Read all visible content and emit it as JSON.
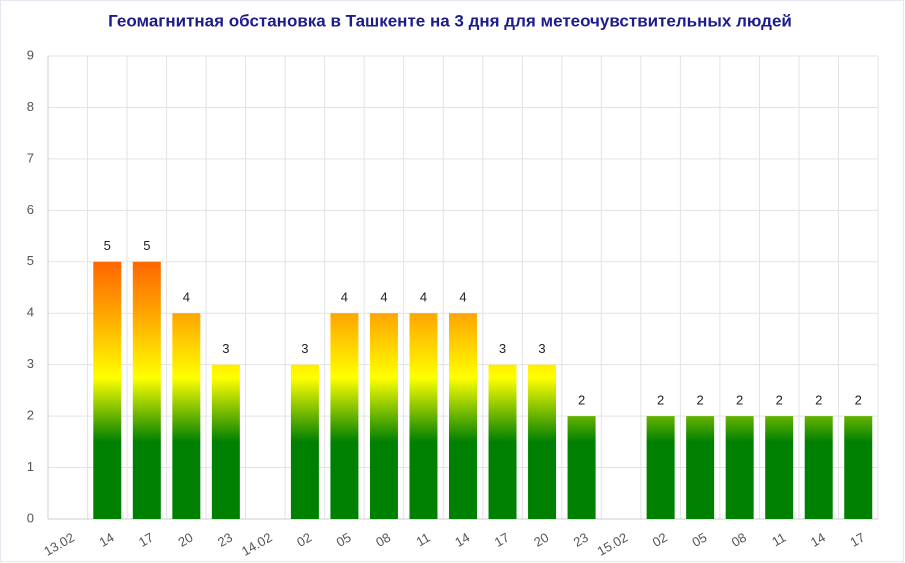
{
  "chart_data": {
    "type": "bar",
    "title": "Геомагнитная обстановка в Ташкенте на 3 дня для метеочувствительных людей",
    "categories": [
      "13.02",
      "14",
      "17",
      "20",
      "23",
      "14.02",
      "02",
      "05",
      "08",
      "11",
      "14",
      "17",
      "20",
      "23",
      "15.02",
      "02",
      "05",
      "08",
      "11",
      "14",
      "17"
    ],
    "values": [
      null,
      5,
      5,
      4,
      3,
      null,
      3,
      4,
      4,
      4,
      4,
      3,
      3,
      2,
      null,
      2,
      2,
      2,
      2,
      2,
      2
    ],
    "colors": [
      "#008000",
      "#ffff00",
      "#ffa500",
      "#ff6600"
    ],
    "ylim": [
      0,
      9
    ],
    "yticks": [
      0,
      1,
      2,
      3,
      4,
      5,
      6,
      7,
      8,
      9
    ],
    "grid": true
  }
}
